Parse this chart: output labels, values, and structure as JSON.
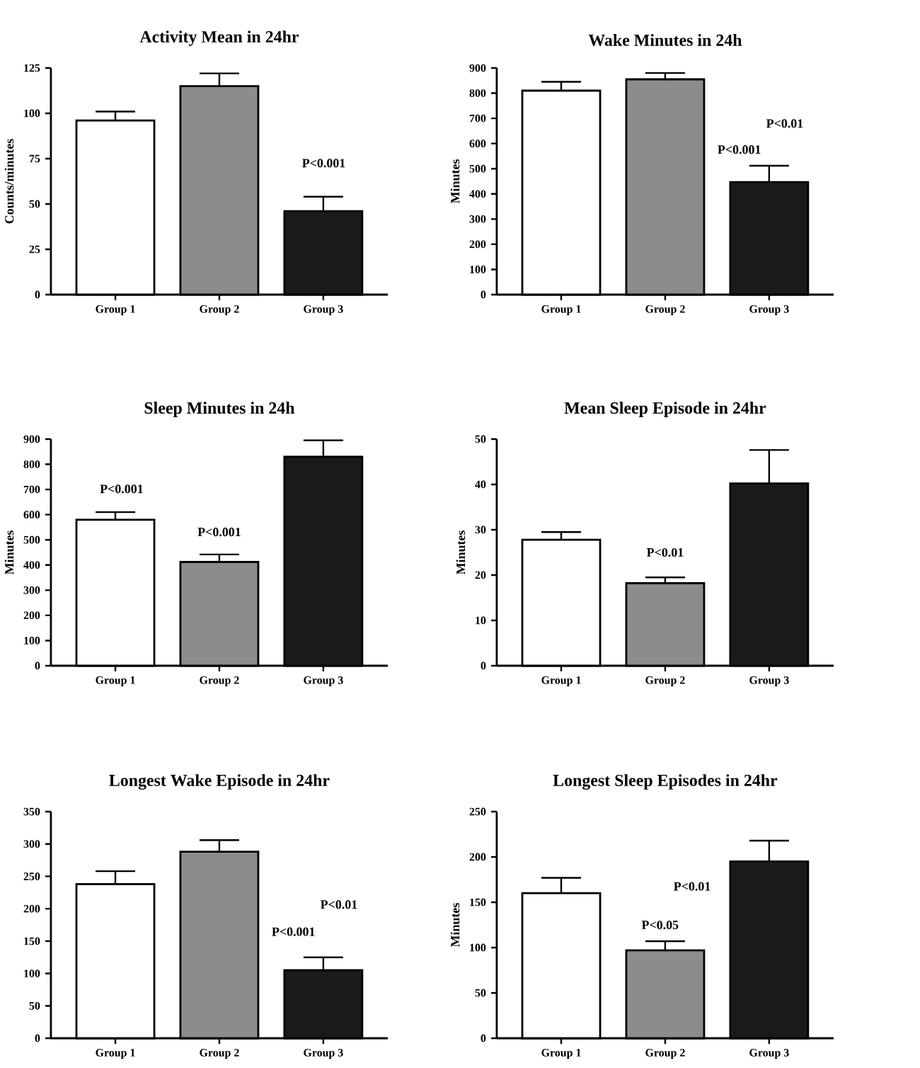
{
  "chart_data": [
    {
      "type": "bar",
      "title": "Activity Mean in 24hr",
      "ylabel": "Counts/minutes",
      "categories": [
        "Group 1",
        "Group 2",
        "Group 3"
      ],
      "values": [
        96,
        115,
        46
      ],
      "errors": [
        5,
        7,
        8
      ],
      "colors": [
        "#ffffff",
        "#8c8c8c",
        "#1a1a1a"
      ],
      "ylim": [
        0,
        125
      ],
      "yticks": [
        0,
        25,
        50,
        75,
        100,
        125
      ],
      "annotations": [
        "P<0.001"
      ]
    },
    {
      "type": "bar",
      "title": "Wake Minutes in 24h",
      "ylabel": "Minutes",
      "categories": [
        "Group 1",
        "Group 2",
        "Group 3"
      ],
      "values": [
        810,
        855,
        447
      ],
      "errors": [
        35,
        25,
        65
      ],
      "colors": [
        "#ffffff",
        "#8c8c8c",
        "#1a1a1a"
      ],
      "ylim": [
        0,
        900
      ],
      "yticks": [
        0,
        100,
        200,
        300,
        400,
        500,
        600,
        700,
        800,
        900
      ],
      "annotations": [
        "P<0.01",
        "P<0.001"
      ]
    },
    {
      "type": "bar",
      "title": "Sleep Minutes in 24h",
      "ylabel": "Minutes",
      "categories": [
        "Group 1",
        "Group 2",
        "Group 3"
      ],
      "values": [
        580,
        412,
        830
      ],
      "errors": [
        30,
        30,
        65
      ],
      "colors": [
        "#ffffff",
        "#8c8c8c",
        "#1a1a1a"
      ],
      "ylim": [
        0,
        900
      ],
      "yticks": [
        0,
        100,
        200,
        300,
        400,
        500,
        600,
        700,
        800,
        900
      ],
      "annotations": [
        "P<0.001",
        "P<0.001"
      ]
    },
    {
      "type": "bar",
      "title": "Mean Sleep Episode in 24hr",
      "ylabel": "Minutes",
      "categories": [
        "Group 1",
        "Group 2",
        "Group 3"
      ],
      "values": [
        27.8,
        18.2,
        40.2
      ],
      "errors": [
        1.7,
        1.3,
        7.4
      ],
      "colors": [
        "#ffffff",
        "#8c8c8c",
        "#1a1a1a"
      ],
      "ylim": [
        0,
        50
      ],
      "yticks": [
        0,
        10,
        20,
        30,
        40,
        50
      ],
      "annotations": [
        "P<0.01"
      ]
    },
    {
      "type": "bar",
      "title": "Longest Wake Episode in 24hr",
      "categories": [
        "Group 1",
        "Group 2",
        "Group 3"
      ],
      "values": [
        238,
        288,
        105
      ],
      "errors": [
        20,
        18,
        20
      ],
      "colors": [
        "#ffffff",
        "#8c8c8c",
        "#1a1a1a"
      ],
      "ylim": [
        0,
        350
      ],
      "yticks": [
        0,
        50,
        100,
        150,
        200,
        250,
        300,
        350
      ],
      "annotations": [
        "P<0.01",
        "P<0.001"
      ]
    },
    {
      "type": "bar",
      "title": "Longest Sleep Episodes in 24hr",
      "ylabel": "Minutes",
      "categories": [
        "Group 1",
        "Group 2",
        "Group 3"
      ],
      "values": [
        160,
        97,
        195
      ],
      "errors": [
        17,
        10,
        23
      ],
      "colors": [
        "#ffffff",
        "#8c8c8c",
        "#1a1a1a"
      ],
      "ylim": [
        0,
        250
      ],
      "yticks": [
        0,
        50,
        100,
        150,
        200,
        250
      ],
      "annotations": [
        "P<0.01",
        "P<0.05"
      ]
    }
  ]
}
